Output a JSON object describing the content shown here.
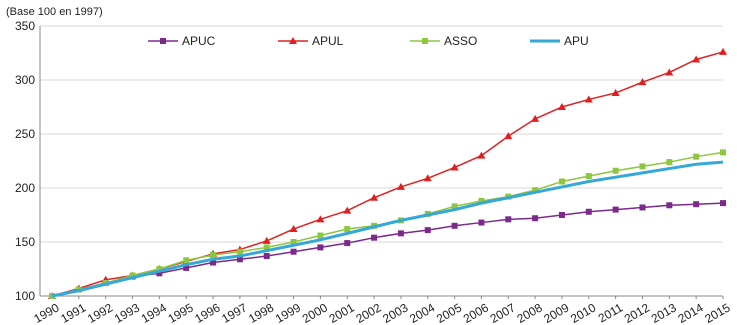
{
  "chart_data": {
    "type": "line",
    "unit_label": "(Base 100 en 1997)",
    "x": [
      "1990",
      "1991",
      "1992",
      "1993",
      "1994",
      "1995",
      "1996",
      "1997",
      "1998",
      "1999",
      "2000",
      "2001",
      "2002",
      "2003",
      "2004",
      "2005",
      "2006",
      "2007",
      "2008",
      "2009",
      "2010",
      "2011",
      "2012",
      "2013",
      "2014",
      "2015"
    ],
    "y_ticks": [
      "100",
      "150",
      "200",
      "250",
      "300",
      "350"
    ],
    "ylim": [
      100,
      350
    ],
    "grid": true,
    "legend_position": "top",
    "series": [
      {
        "name": "APUC",
        "color": "#7b2a8b",
        "marker": "square",
        "values": [
          100,
          106,
          112,
          118,
          121,
          126,
          131,
          134,
          137,
          141,
          145,
          149,
          154,
          158,
          161,
          165,
          168,
          171,
          172,
          175,
          178,
          180,
          182,
          184,
          185,
          186
        ]
      },
      {
        "name": "APUL",
        "color": "#e02020",
        "marker": "triangle",
        "values": [
          100,
          107,
          115,
          119,
          125,
          132,
          139,
          143,
          151,
          162,
          171,
          179,
          191,
          201,
          209,
          219,
          230,
          248,
          264,
          275,
          282,
          288,
          298,
          307,
          319,
          326
        ]
      },
      {
        "name": "ASSO",
        "color": "#8dc63f",
        "marker": "square",
        "values": [
          100,
          106,
          112,
          119,
          125,
          133,
          138,
          141,
          145,
          150,
          156,
          162,
          165,
          170,
          176,
          183,
          188,
          192,
          198,
          206,
          211,
          216,
          220,
          224,
          229,
          233
        ]
      },
      {
        "name": "APU",
        "color": "#35a8d8",
        "marker": "none",
        "values": [
          100,
          105,
          111,
          117,
          123,
          129,
          134,
          137,
          142,
          147,
          152,
          158,
          164,
          170,
          175,
          180,
          186,
          191,
          196,
          201,
          206,
          210,
          214,
          218,
          222,
          224
        ]
      }
    ]
  }
}
